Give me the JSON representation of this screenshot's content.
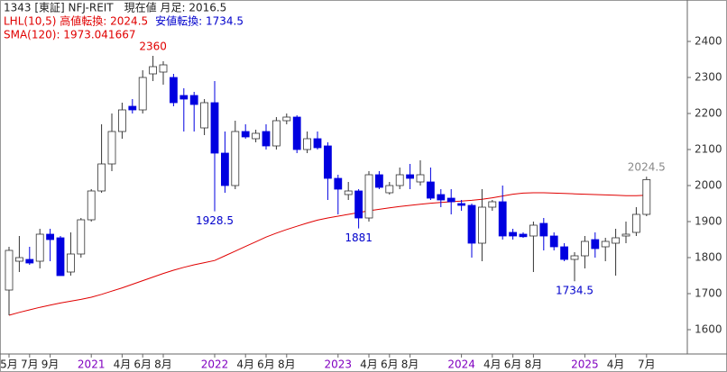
{
  "chart_data": {
    "type": "candlestick",
    "header": [
      [
        {
          "text": "1343 [東証] NFJ-REIT　現在値 月足: 2016.5",
          "color": "#222222"
        }
      ],
      [
        {
          "text": "LHL(10,5) 高値転換: 2024.5",
          "color": "#e00000"
        },
        {
          "text": "安値転換: 1734.5",
          "color": "#0000cc"
        }
      ],
      [
        {
          "text": "SMA(120): 1973.041667",
          "color": "#e00000"
        }
      ]
    ],
    "categories": [
      "5月",
      null,
      "7月",
      null,
      "9月",
      null,
      null,
      null,
      "2021",
      null,
      null,
      "4月",
      null,
      "6月",
      null,
      "8月",
      null,
      null,
      null,
      null,
      "2022",
      null,
      null,
      "4月",
      null,
      "6月",
      null,
      "8月",
      null,
      null,
      null,
      null,
      "2023",
      null,
      null,
      "4月",
      null,
      "6月",
      null,
      "8月",
      null,
      null,
      null,
      null,
      "2024",
      null,
      null,
      "4月",
      null,
      "6月",
      null,
      "8月",
      null,
      null,
      null,
      null,
      "2025",
      null,
      null,
      "4月",
      null,
      null,
      "7月"
    ],
    "year_labels": [
      "2021",
      "2022",
      "2023",
      "2024",
      "2025"
    ],
    "year_label_color": "#8000c0",
    "ohlc": {
      "open": [
        1710,
        1790,
        1795,
        1790,
        1865,
        1855,
        1760,
        1810,
        1905,
        1985,
        2060,
        2150,
        2220,
        2210,
        2310,
        2315,
        2300,
        2250,
        2250,
        2160,
        2230,
        2090,
        2000,
        2150,
        2130,
        2150,
        2110,
        2180,
        2190,
        2100,
        2130,
        2110,
        2020,
        1975,
        1985,
        1910,
        2030,
        1980,
        2000,
        2030,
        2010,
        2010,
        1975,
        1965,
        1950,
        1945,
        1840,
        1940,
        1955,
        1870,
        1865,
        1860,
        1895,
        1860,
        1830,
        1795,
        1805,
        1850,
        1830,
        1840,
        1860,
        1870,
        1920
      ],
      "high": [
        1830,
        1860,
        1830,
        1880,
        1880,
        1860,
        1870,
        1910,
        1990,
        2170,
        2200,
        2230,
        2240,
        2320,
        2360,
        2345,
        2310,
        2270,
        2260,
        2240,
        2290,
        2150,
        2180,
        2170,
        2155,
        2170,
        2190,
        2200,
        2195,
        2150,
        2150,
        2120,
        2030,
        2010,
        1990,
        2040,
        2040,
        2010,
        2050,
        2060,
        2070,
        2050,
        1990,
        1990,
        1960,
        1950,
        1990,
        1960,
        2000,
        1880,
        1870,
        1900,
        1910,
        1870,
        1840,
        1815,
        1860,
        1870,
        1855,
        1880,
        1900,
        1940,
        2024.5
      ],
      "low": [
        1640,
        1760,
        1780,
        1770,
        1790,
        1750,
        1750,
        1800,
        1900,
        1980,
        2040,
        2130,
        2200,
        2200,
        2290,
        2280,
        2220,
        2150,
        2150,
        2140,
        1928.5,
        1980,
        1990,
        2130,
        2120,
        2100,
        2100,
        2170,
        2090,
        2090,
        2100,
        1960,
        1920,
        1960,
        1881,
        1900,
        1990,
        1975,
        1990,
        1990,
        2000,
        1960,
        1940,
        1920,
        1930,
        1800,
        1790,
        1930,
        1850,
        1850,
        1855,
        1760,
        1820,
        1820,
        1790,
        1734.5,
        1770,
        1800,
        1790,
        1750,
        1840,
        1860,
        1915
      ],
      "close": [
        1820,
        1800,
        1785,
        1865,
        1850,
        1750,
        1810,
        1905,
        1985,
        2060,
        2150,
        2210,
        2210,
        2300,
        2330,
        2335,
        2230,
        2240,
        2225,
        2230,
        2090,
        2000,
        2150,
        2135,
        2145,
        2110,
        2180,
        2190,
        2100,
        2130,
        2105,
        2020,
        1990,
        1985,
        1910,
        2030,
        1995,
        2000,
        2030,
        2020,
        2030,
        1965,
        1960,
        1955,
        1945,
        1840,
        1940,
        1955,
        1860,
        1860,
        1858,
        1890,
        1860,
        1830,
        1795,
        1805,
        1845,
        1825,
        1845,
        1855,
        1865,
        1920,
        2016.5
      ],
      "up_color": "#ffffff",
      "down_color": "#0000e0",
      "border_color": "#333333"
    },
    "sma": {
      "color": "#e00000",
      "values": [
        1640,
        1648,
        1655,
        1662,
        1668,
        1674,
        1679,
        1684,
        1690,
        1698,
        1707,
        1716,
        1726,
        1736,
        1746,
        1756,
        1765,
        1773,
        1780,
        1786,
        1792,
        1805,
        1818,
        1831,
        1844,
        1857,
        1868,
        1878,
        1887,
        1896,
        1904,
        1910,
        1915,
        1920,
        1925,
        1930,
        1934,
        1938,
        1942,
        1945,
        1948,
        1951,
        1953,
        1955,
        1957,
        1959,
        1962,
        1966,
        1971,
        1976,
        1979,
        1980,
        1980,
        1979,
        1978,
        1977,
        1976,
        1975,
        1974,
        1973,
        1972,
        1972,
        1973.041667
      ]
    },
    "annotations": [
      {
        "text": "2360",
        "color": "#e00000",
        "at": "high"
      },
      {
        "text": "1928.5",
        "color": "#0000cc",
        "at": "low"
      },
      {
        "text": "1881",
        "color": "#0000cc",
        "at": "low"
      },
      {
        "text": "1734.5",
        "color": "#0000cc",
        "at": "low"
      },
      {
        "text": "2024.5",
        "color": "#888888",
        "at": "high"
      }
    ],
    "ylim": [
      1532.5,
      2515
    ],
    "yticks": [
      1600,
      1700,
      1800,
      1900,
      2000,
      2100,
      2200,
      2300,
      2400
    ]
  }
}
